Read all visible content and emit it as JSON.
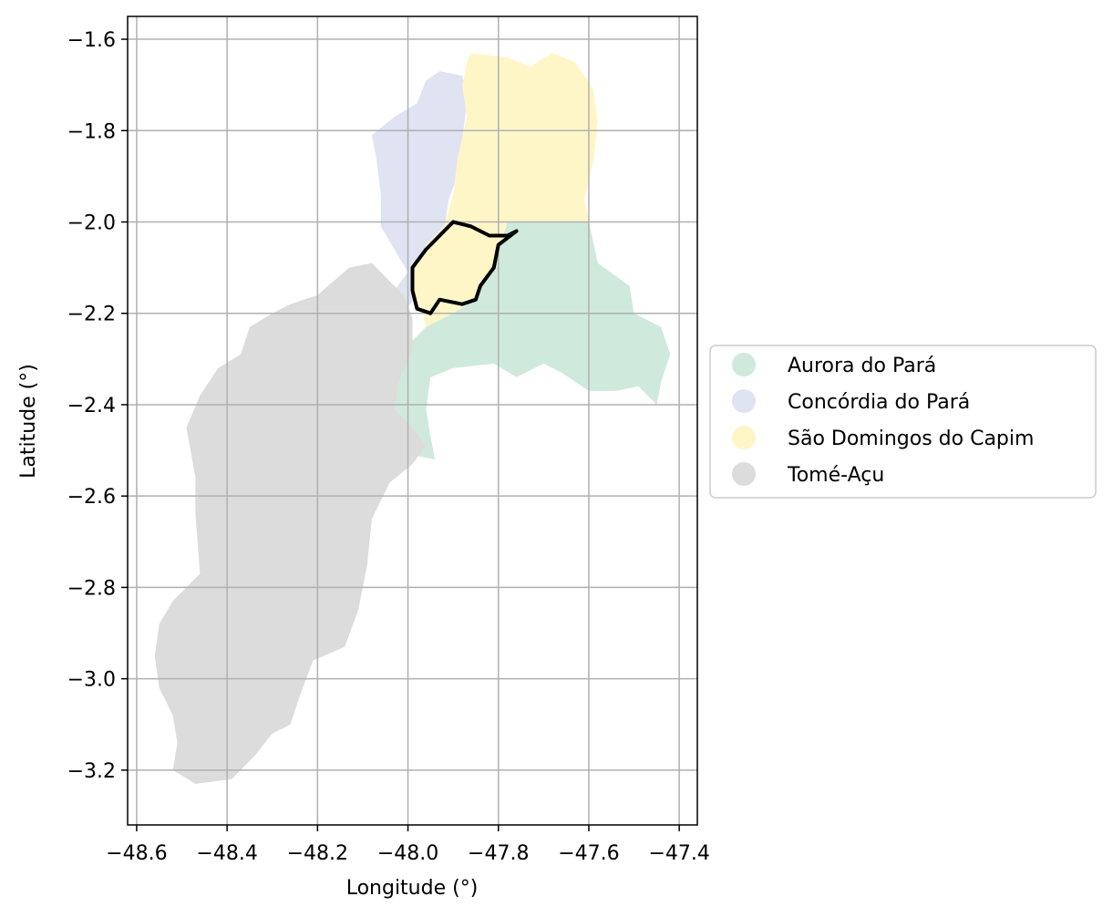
{
  "map": {
    "xlabel": "Longitude (°)",
    "ylabel": "Latitude (°)",
    "xlim": [
      -48.62,
      -47.36
    ],
    "ylim": [
      -3.32,
      -1.55
    ],
    "grid": true,
    "legend_placement": "right-center",
    "x_ticks": [
      {
        "value": -48.6,
        "label": "−48.6"
      },
      {
        "value": -48.4,
        "label": "−48.4"
      },
      {
        "value": -48.2,
        "label": "−48.2"
      },
      {
        "value": -48.0,
        "label": "−48.0"
      },
      {
        "value": -47.8,
        "label": "−47.8"
      },
      {
        "value": -47.6,
        "label": "−47.6"
      },
      {
        "value": -47.4,
        "label": "−47.4"
      }
    ],
    "y_ticks": [
      {
        "value": -1.6,
        "label": "−1.6"
      },
      {
        "value": -1.8,
        "label": "−1.8"
      },
      {
        "value": -2.0,
        "label": "−2.0"
      },
      {
        "value": -2.2,
        "label": "−2.2"
      },
      {
        "value": -2.4,
        "label": "−2.4"
      },
      {
        "value": -2.6,
        "label": "−2.6"
      },
      {
        "value": -2.8,
        "label": "−2.8"
      },
      {
        "value": -3.0,
        "label": "−3.0"
      },
      {
        "value": -3.2,
        "label": "−3.2"
      }
    ],
    "regions": [
      {
        "name": "Aurora do Pará",
        "color": "#cfeadc",
        "outline": [
          [
            -47.78,
            -2.0
          ],
          [
            -47.6,
            -2.0
          ],
          [
            -47.58,
            -2.09
          ],
          [
            -47.51,
            -2.14
          ],
          [
            -47.5,
            -2.2
          ],
          [
            -47.44,
            -2.23
          ],
          [
            -47.42,
            -2.29
          ],
          [
            -47.44,
            -2.35
          ],
          [
            -47.45,
            -2.4
          ],
          [
            -47.49,
            -2.36
          ],
          [
            -47.54,
            -2.37
          ],
          [
            -47.6,
            -2.37
          ],
          [
            -47.66,
            -2.33
          ],
          [
            -47.7,
            -2.31
          ],
          [
            -47.76,
            -2.34
          ],
          [
            -47.81,
            -2.31
          ],
          [
            -47.9,
            -2.32
          ],
          [
            -47.95,
            -2.34
          ],
          [
            -47.96,
            -2.41
          ],
          [
            -47.95,
            -2.47
          ],
          [
            -47.94,
            -2.52
          ],
          [
            -47.99,
            -2.51
          ],
          [
            -48.04,
            -2.48
          ],
          [
            -48.03,
            -2.42
          ],
          [
            -48.05,
            -2.36
          ],
          [
            -48.02,
            -2.31
          ],
          [
            -47.99,
            -2.26
          ],
          [
            -47.95,
            -2.22
          ],
          [
            -47.89,
            -2.18
          ],
          [
            -47.84,
            -2.15
          ],
          [
            -47.82,
            -2.09
          ],
          [
            -47.79,
            -2.03
          ]
        ]
      },
      {
        "name": "Concórdia do Pará",
        "color": "#dfe3f2",
        "outline": [
          [
            -47.93,
            -1.67
          ],
          [
            -47.88,
            -1.68
          ],
          [
            -47.87,
            -1.74
          ],
          [
            -47.88,
            -1.82
          ],
          [
            -47.89,
            -1.9
          ],
          [
            -47.91,
            -1.95
          ],
          [
            -47.92,
            -2.02
          ],
          [
            -47.96,
            -2.05
          ],
          [
            -47.98,
            -2.1
          ],
          [
            -47.98,
            -2.16
          ],
          [
            -48.01,
            -2.2
          ],
          [
            -48.04,
            -2.21
          ],
          [
            -48.03,
            -2.15
          ],
          [
            -48.0,
            -2.11
          ],
          [
            -48.03,
            -2.06
          ],
          [
            -48.06,
            -2.01
          ],
          [
            -48.06,
            -1.94
          ],
          [
            -48.07,
            -1.86
          ],
          [
            -48.08,
            -1.81
          ],
          [
            -48.03,
            -1.77
          ],
          [
            -47.98,
            -1.74
          ],
          [
            -47.96,
            -1.69
          ]
        ]
      },
      {
        "name": "São Domingos do Capim",
        "color": "#fff6c8",
        "outline": [
          [
            -47.87,
            -1.65
          ],
          [
            -47.86,
            -1.63
          ],
          [
            -47.78,
            -1.64
          ],
          [
            -47.73,
            -1.66
          ],
          [
            -47.68,
            -1.63
          ],
          [
            -47.63,
            -1.65
          ],
          [
            -47.59,
            -1.71
          ],
          [
            -47.58,
            -1.78
          ],
          [
            -47.59,
            -1.87
          ],
          [
            -47.61,
            -1.95
          ],
          [
            -47.6,
            -2.0
          ],
          [
            -47.78,
            -2.0
          ],
          [
            -47.8,
            -2.05
          ],
          [
            -47.83,
            -2.1
          ],
          [
            -47.85,
            -2.17
          ],
          [
            -47.9,
            -2.2
          ],
          [
            -47.96,
            -2.23
          ],
          [
            -47.97,
            -2.18
          ],
          [
            -47.99,
            -2.12
          ],
          [
            -47.96,
            -2.05
          ],
          [
            -47.92,
            -2.01
          ],
          [
            -47.9,
            -1.94
          ],
          [
            -47.89,
            -1.86
          ],
          [
            -47.87,
            -1.77
          ],
          [
            -47.88,
            -1.7
          ]
        ]
      },
      {
        "name": "Tomé-Açu",
        "color": "#dcdcdc",
        "outline": [
          [
            -48.08,
            -2.09
          ],
          [
            -48.13,
            -2.1
          ],
          [
            -48.2,
            -2.16
          ],
          [
            -48.26,
            -2.18
          ],
          [
            -48.3,
            -2.2
          ],
          [
            -48.35,
            -2.23
          ],
          [
            -48.37,
            -2.29
          ],
          [
            -48.42,
            -2.32
          ],
          [
            -48.46,
            -2.38
          ],
          [
            -48.49,
            -2.45
          ],
          [
            -48.47,
            -2.56
          ],
          [
            -48.47,
            -2.64
          ],
          [
            -48.46,
            -2.77
          ],
          [
            -48.52,
            -2.83
          ],
          [
            -48.55,
            -2.88
          ],
          [
            -48.56,
            -2.95
          ],
          [
            -48.55,
            -3.02
          ],
          [
            -48.52,
            -3.08
          ],
          [
            -48.51,
            -3.14
          ],
          [
            -48.52,
            -3.2
          ],
          [
            -48.47,
            -3.23
          ],
          [
            -48.39,
            -3.22
          ],
          [
            -48.34,
            -3.17
          ],
          [
            -48.3,
            -3.12
          ],
          [
            -48.26,
            -3.1
          ],
          [
            -48.24,
            -3.04
          ],
          [
            -48.21,
            -2.96
          ],
          [
            -48.14,
            -2.93
          ],
          [
            -48.11,
            -2.85
          ],
          [
            -48.09,
            -2.75
          ],
          [
            -48.08,
            -2.65
          ],
          [
            -48.04,
            -2.57
          ],
          [
            -47.99,
            -2.53
          ],
          [
            -47.96,
            -2.49
          ],
          [
            -47.99,
            -2.45
          ],
          [
            -48.03,
            -2.41
          ],
          [
            -48.02,
            -2.35
          ],
          [
            -47.99,
            -2.28
          ],
          [
            -47.99,
            -2.21
          ],
          [
            -48.01,
            -2.16
          ],
          [
            -48.05,
            -2.12
          ]
        ]
      }
    ],
    "highlight": {
      "outline_color": "#000000",
      "fill_color": "#fff6c8",
      "outline": [
        [
          -47.9,
          -2.0
        ],
        [
          -47.86,
          -2.01
        ],
        [
          -47.82,
          -2.03
        ],
        [
          -47.78,
          -2.03
        ],
        [
          -47.76,
          -2.02
        ],
        [
          -47.8,
          -2.05
        ],
        [
          -47.81,
          -2.1
        ],
        [
          -47.84,
          -2.14
        ],
        [
          -47.85,
          -2.17
        ],
        [
          -47.88,
          -2.18
        ],
        [
          -47.93,
          -2.17
        ],
        [
          -47.95,
          -2.2
        ],
        [
          -47.98,
          -2.19
        ],
        [
          -47.99,
          -2.15
        ],
        [
          -47.99,
          -2.1
        ],
        [
          -47.96,
          -2.06
        ],
        [
          -47.93,
          -2.03
        ]
      ]
    },
    "legend": [
      {
        "label": "Aurora do Pará",
        "color": "#cfeadc"
      },
      {
        "label": "Concórdia do Pará",
        "color": "#dfe3f2"
      },
      {
        "label": "São Domingos do Capim",
        "color": "#fff6c8"
      },
      {
        "label": "Tomé-Açu",
        "color": "#dcdcdc"
      }
    ]
  }
}
